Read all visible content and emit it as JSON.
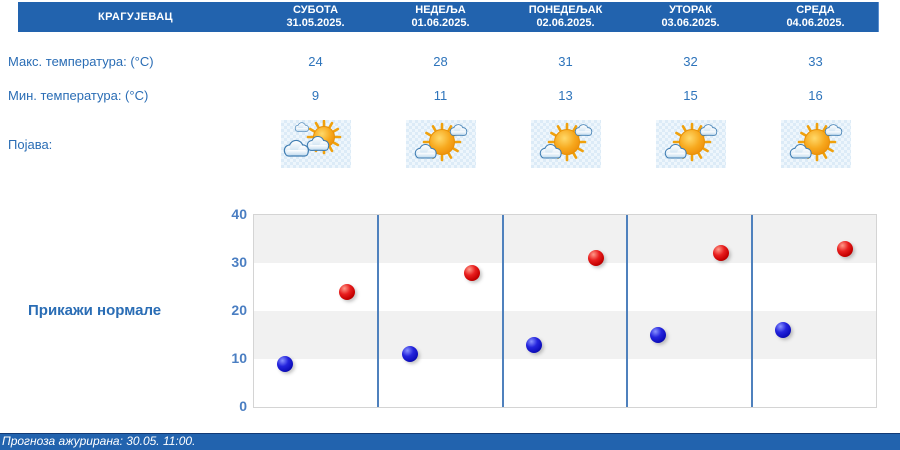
{
  "header": {
    "location": "КРАГУЈЕВАЦ",
    "days": [
      {
        "name": "СУБОТА",
        "date": "31.05.2025."
      },
      {
        "name": "НЕДЕЉА",
        "date": "01.06.2025."
      },
      {
        "name": "ПОНЕДЕЉАК",
        "date": "02.06.2025."
      },
      {
        "name": "УТОРАК",
        "date": "03.06.2025."
      },
      {
        "name": "СРЕДА",
        "date": "04.06.2025."
      }
    ],
    "bar_color": "#2263ae"
  },
  "rows": {
    "max_label": "Макс. температура: (°C)",
    "max_values": [
      "24",
      "28",
      "31",
      "32",
      "33"
    ],
    "min_label": "Мин. температура: (°C)",
    "min_values": [
      "9",
      "11",
      "13",
      "15",
      "16"
    ],
    "phenomenon_label": "Појава:",
    "phenomenon_icons": [
      "sun-behind-clouds",
      "sun-with-clouds",
      "sun-with-clouds",
      "sun-with-clouds",
      "sun-with-clouds"
    ]
  },
  "controls": {
    "show_normals_label": "Прикажи нормале"
  },
  "chart_data": {
    "type": "scatter",
    "categories": [
      "СУБОТА 31.05.2025.",
      "НЕДЕЉА 01.06.2025.",
      "ПОНЕДЕЉАК 02.06.2025.",
      "УТОРАК 03.06.2025.",
      "СРЕДА 04.06.2025."
    ],
    "series": [
      {
        "name": "Макс. температура (°C)",
        "color": "#c40000",
        "values": [
          24,
          28,
          31,
          32,
          33
        ]
      },
      {
        "name": "Мин. температура (°C)",
        "color": "#1515cc",
        "values": [
          9,
          11,
          13,
          15,
          16
        ]
      }
    ],
    "ylim": [
      0,
      40
    ],
    "yticks": [
      0,
      10,
      20,
      30,
      40
    ],
    "grid": "horizontal-bands-every-10",
    "band_color": "#f1f1f1",
    "divider_color": "#4f81bd",
    "legend": "none",
    "title": "",
    "xlabel": "",
    "ylabel": ""
  },
  "footer": {
    "updated_text": "Прогноза ажурирана:  30.05. 11:00."
  }
}
